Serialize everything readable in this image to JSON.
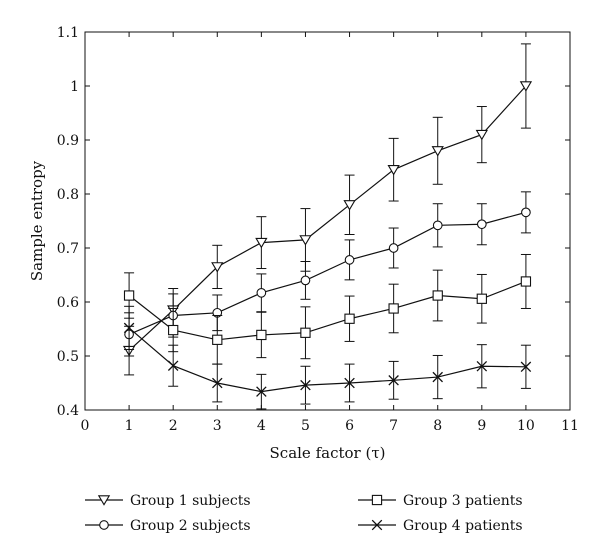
{
  "chart_data": {
    "type": "line",
    "xlabel": "Scale factor (τ)",
    "ylabel": "Sample entropy",
    "xlim": [
      0,
      11
    ],
    "ylim": [
      0.4,
      1.1
    ],
    "xticks": [
      "0",
      "1",
      "2",
      "3",
      "4",
      "5",
      "6",
      "7",
      "8",
      "9",
      "10",
      "11"
    ],
    "yticks": [
      "0.4",
      "0.5",
      "0.6",
      "0.7",
      "0.8",
      "0.9",
      "1",
      "1.1"
    ],
    "grid": false,
    "legend_position": "below",
    "x": [
      1,
      2,
      3,
      4,
      5,
      6,
      7,
      8,
      9,
      10
    ],
    "series": [
      {
        "name": "Group 1 subjects",
        "marker": "triangle-down",
        "values": [
          0.51,
          0.585,
          0.665,
          0.71,
          0.715,
          0.78,
          0.845,
          0.88,
          0.91,
          1.0
        ],
        "error": [
          0.045,
          0.04,
          0.04,
          0.048,
          0.058,
          0.055,
          0.058,
          0.062,
          0.052,
          0.078
        ]
      },
      {
        "name": "Group 2 subjects",
        "marker": "circle",
        "values": [
          0.54,
          0.575,
          0.58,
          0.617,
          0.64,
          0.678,
          0.7,
          0.742,
          0.744,
          0.766
        ],
        "error": [
          0.04,
          0.04,
          0.033,
          0.035,
          0.035,
          0.037,
          0.037,
          0.04,
          0.038,
          0.038
        ]
      },
      {
        "name": "Group 3 patients",
        "marker": "square",
        "values": [
          0.612,
          0.548,
          0.53,
          0.539,
          0.543,
          0.569,
          0.588,
          0.612,
          0.606,
          0.638
        ],
        "error": [
          0.042,
          0.04,
          0.045,
          0.042,
          0.048,
          0.042,
          0.045,
          0.047,
          0.045,
          0.05
        ]
      },
      {
        "name": "Group 4 patients",
        "marker": "x",
        "values": [
          0.552,
          0.482,
          0.45,
          0.434,
          0.446,
          0.45,
          0.455,
          0.461,
          0.481,
          0.48
        ],
        "error": [
          0.04,
          0.038,
          0.035,
          0.032,
          0.035,
          0.035,
          0.035,
          0.04,
          0.04,
          0.04
        ]
      }
    ]
  }
}
